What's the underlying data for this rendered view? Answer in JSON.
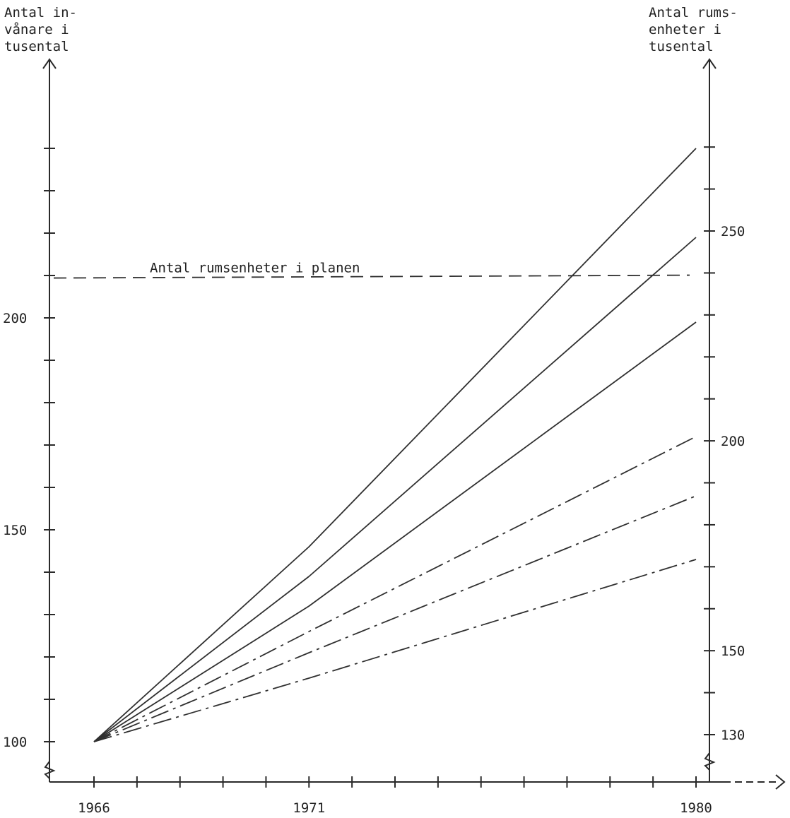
{
  "chart_data": {
    "type": "line",
    "left_axis_title": "Antal in-\nvånare i\ntusental",
    "right_axis_title": "Antal rums-\nenheter i\ntusental",
    "x": [
      1966,
      1971,
      1980
    ],
    "x_ticks": [
      "1966",
      "1971",
      "1980"
    ],
    "x_range": [
      1966,
      1980
    ],
    "left_ylim": [
      100,
      240
    ],
    "left_y_ticks": [
      "100",
      "150",
      "200"
    ],
    "right_ylim": [
      120,
      280
    ],
    "right_y_ticks": [
      "130",
      "150",
      "200",
      "250"
    ],
    "axis_breaks": true,
    "series": [
      {
        "values": [
          100,
          146,
          240
        ],
        "style": "solid"
      },
      {
        "values": [
          100,
          139,
          219
        ],
        "style": "solid"
      },
      {
        "values": [
          100,
          132,
          199
        ],
        "style": "solid"
      },
      {
        "values": [
          100,
          126,
          172
        ],
        "style": "dashdot"
      },
      {
        "values": [
          100,
          121,
          158
        ],
        "style": "dashdot"
      },
      {
        "values": [
          100,
          115,
          143
        ],
        "style": "dashdot"
      }
    ],
    "annotations": [
      {
        "text": "Antal rumsenheter i planen",
        "axis": "right",
        "value": 238.8,
        "style": "dashed"
      }
    ],
    "grid": false,
    "legend": "none"
  }
}
